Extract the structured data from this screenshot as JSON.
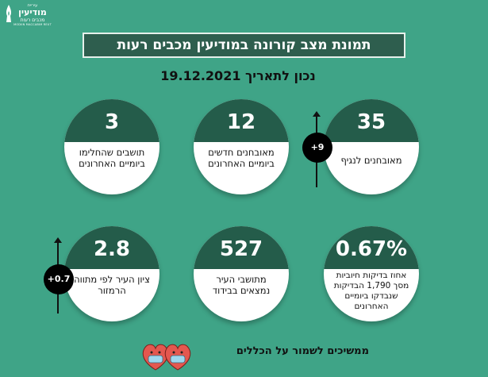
{
  "logo": {
    "line1": "עיריית",
    "line2": "מודיעין",
    "line3": "מכבים רעות",
    "line4": "MODIIN MACCABIM REUT"
  },
  "title": "תמונת מצב קורונה במודיעין מכבים רעות",
  "date": {
    "label": "נכון לתאריך",
    "value": "19.12.2021"
  },
  "stats": [
    {
      "value": "35",
      "desc": "מאובחנים לנגיף",
      "badge": "+9"
    },
    {
      "value": "12",
      "desc": "מאובחנים חדשים ביומיים האחרונים"
    },
    {
      "value": "3",
      "desc": "תושבים שהחלימו ביומיים האחרונים"
    },
    {
      "value": "0.67%",
      "desc": "אחוז בדיקות חיוביות מסך 1,790 הבדיקות שנבדקו ביומיים האחרונים"
    },
    {
      "value": "527",
      "desc": "מתושבי העיר נמצאים בבידוד"
    },
    {
      "value": "2.8",
      "desc": "ציון העיר לפי מתווה הרמזור",
      "badge": "+0.7"
    }
  ],
  "footer": "ממשיכים לשמור על הכללים",
  "colors": {
    "background": "#3fa487",
    "card_header": "#245c4a",
    "title_box": "#2e5e4e",
    "mask": "#9fd7ee",
    "heart": "#e4574f"
  },
  "icons": [
    "flame-logo-icon",
    "trend-up-arrow-icon",
    "hearts-with-masks-icon"
  ]
}
